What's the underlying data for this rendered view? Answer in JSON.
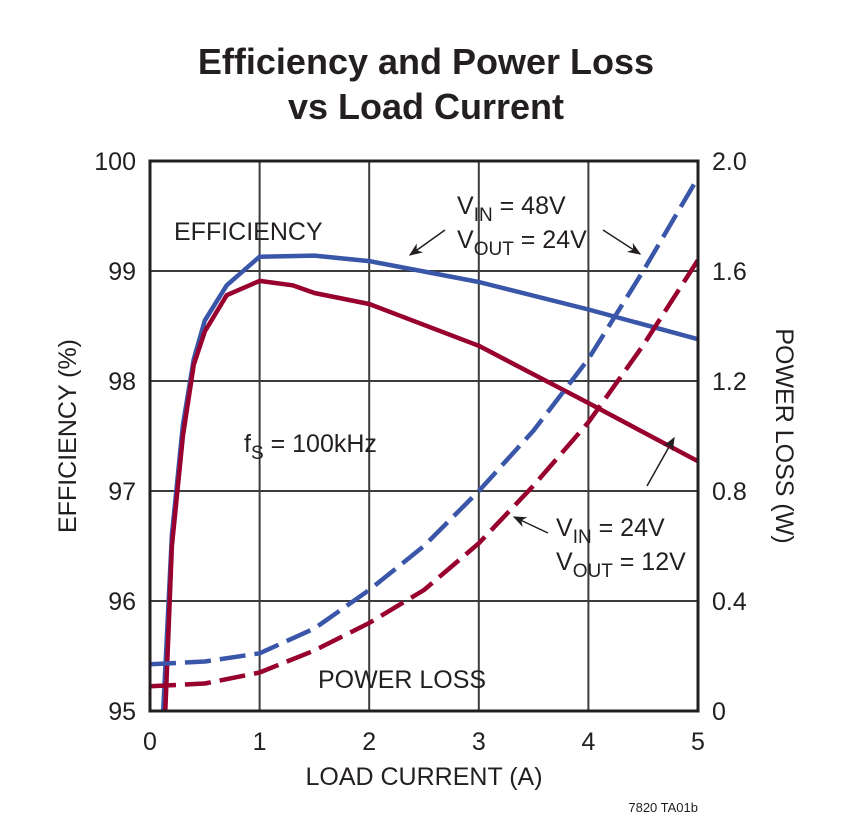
{
  "chart_data": {
    "type": "line",
    "title": [
      "Efficiency and Power Loss",
      "vs Load Current"
    ],
    "xlabel": "LOAD CURRENT (A)",
    "ylabel_left": "EFFICIENCY (%)",
    "ylabel_right": "POWER LOSS (W)",
    "xlim": [
      0,
      5
    ],
    "ylim_left": [
      95,
      100
    ],
    "ylim_right": [
      0,
      2.0
    ],
    "x_ticks": [
      "0",
      "1",
      "2",
      "3",
      "4",
      "5"
    ],
    "y_left_ticks": [
      "95",
      "96",
      "97",
      "98",
      "99",
      "100"
    ],
    "y_right_ticks": [
      "0",
      "0.4",
      "0.8",
      "1.2",
      "1.6",
      "2.0"
    ],
    "grid": true,
    "colors": {
      "vin48": "#3a56a8",
      "vin24": "#98002e",
      "axis": "#231f20",
      "grid": "#3c3c3c"
    },
    "series": [
      {
        "condition": "VIN = 48V, VOUT = 24V",
        "kind": "efficiency",
        "axis": "left",
        "style": "solid",
        "color": "#3a56a8",
        "x": [
          0.12,
          0.2,
          0.3,
          0.4,
          0.5,
          0.7,
          1.0,
          1.5,
          2.0,
          3.0,
          4.0,
          5.0
        ],
        "y": [
          95.0,
          96.6,
          97.6,
          98.2,
          98.55,
          98.87,
          99.13,
          99.14,
          99.09,
          98.9,
          98.65,
          98.38
        ]
      },
      {
        "condition": "VIN = 24V, VOUT = 12V",
        "kind": "efficiency",
        "axis": "left",
        "style": "solid",
        "color": "#98002e",
        "x": [
          0.14,
          0.2,
          0.3,
          0.4,
          0.5,
          0.7,
          1.0,
          1.3,
          1.5,
          2.0,
          3.0,
          4.0,
          5.0
        ],
        "y": [
          95.0,
          96.5,
          97.5,
          98.15,
          98.45,
          98.78,
          98.91,
          98.87,
          98.8,
          98.7,
          98.32,
          97.8,
          97.27
        ]
      },
      {
        "condition": "VIN = 48V, VOUT = 24V",
        "kind": "power loss",
        "axis": "right",
        "style": "dashed",
        "color": "#3a56a8",
        "x": [
          0,
          0.5,
          1.0,
          1.5,
          2.0,
          2.5,
          3.0,
          3.5,
          4.0,
          4.5,
          5.0
        ],
        "y": [
          0.17,
          0.18,
          0.21,
          0.3,
          0.44,
          0.6,
          0.8,
          1.02,
          1.28,
          1.6,
          1.94
        ]
      },
      {
        "condition": "VIN = 24V, VOUT = 12V",
        "kind": "power loss",
        "axis": "right",
        "style": "dashed",
        "color": "#98002e",
        "x": [
          0,
          0.5,
          1.0,
          1.5,
          2.0,
          2.5,
          3.0,
          3.5,
          4.0,
          4.5,
          5.0
        ],
        "y": [
          0.09,
          0.1,
          0.14,
          0.22,
          0.32,
          0.44,
          0.61,
          0.82,
          1.05,
          1.33,
          1.64
        ]
      }
    ],
    "annotations": {
      "efficiency": "EFFICIENCY",
      "power_loss": "POWER LOSS",
      "fs": {
        "main": "f",
        "sub": "S",
        "rest": " = 100kHz"
      },
      "vin48": {
        "v1": "V",
        "s1": "IN",
        "r1": " = 48V",
        "v2": "V",
        "s2": "OUT",
        "r2": " = 24V"
      },
      "vin24": {
        "v1": "V",
        "s1": "IN",
        "r1": " = 24V",
        "v2": "V",
        "s2": "OUT",
        "r2": " = 12V"
      }
    },
    "footnote": "7820 TA01b"
  }
}
